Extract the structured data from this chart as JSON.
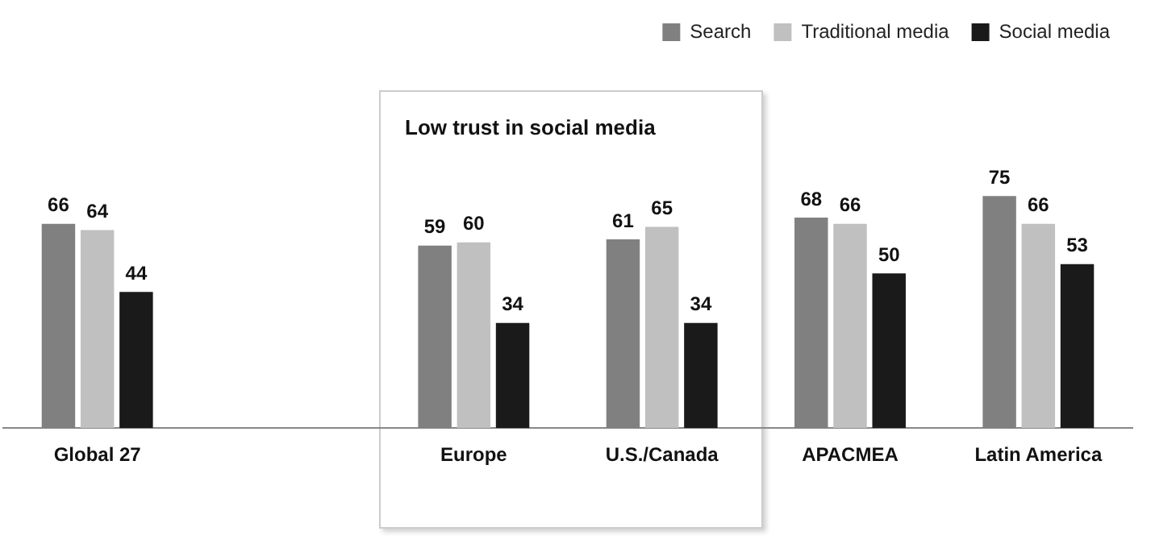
{
  "chart_data": {
    "type": "bar",
    "categories": [
      "Global 27",
      null,
      "Europe",
      "U.S./Canada",
      "APACMEA",
      "Latin America"
    ],
    "series": [
      {
        "name": "Search",
        "color": "#808080",
        "values": [
          66,
          null,
          59,
          61,
          68,
          75
        ]
      },
      {
        "name": "Traditional media",
        "color": "#c0c0c0",
        "values": [
          64,
          null,
          60,
          65,
          66,
          66
        ]
      },
      {
        "name": "Social media",
        "color": "#1a1a1a",
        "values": [
          44,
          null,
          34,
          34,
          50,
          53
        ]
      }
    ],
    "tick_labels": "x",
    "grid": false,
    "legend": "top right",
    "data_labels": true,
    "annotations": [
      "Low trust in social media"
    ]
  }
}
